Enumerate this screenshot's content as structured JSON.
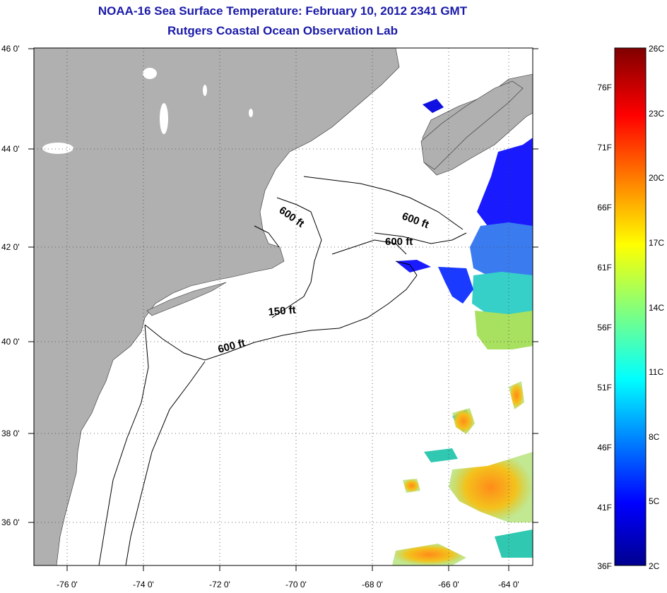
{
  "title": {
    "line1": "NOAA-16 Sea Surface Temperature:  February 10, 2012 2341 GMT",
    "line2": "Rutgers Coastal Ocean Observation Lab"
  },
  "map": {
    "lat_labels": [
      "46 0'",
      "44 0'",
      "42 0'",
      "40 0'",
      "38 0'",
      "36 0'"
    ],
    "lon_labels": [
      "-76 0'",
      "-74 0'",
      "-72 0'",
      "-70 0'",
      "-68 0'",
      "-66 0'",
      "-64 0'"
    ],
    "contour_labels": [
      "600 ft",
      "600 ft",
      "600 ft",
      "150 ft",
      "600 ft"
    ],
    "colors": {
      "land": "#b0b0b0",
      "ocean": "#ffffff"
    }
  },
  "colorbar": {
    "celsius_labels": [
      "26C",
      "23C",
      "20C",
      "17C",
      "14C",
      "11C",
      "8C",
      "5C",
      "2C"
    ],
    "fahrenheit_labels": [
      "76F",
      "71F",
      "66F",
      "61F",
      "56F",
      "51F",
      "46F",
      "41F",
      "36F"
    ]
  }
}
